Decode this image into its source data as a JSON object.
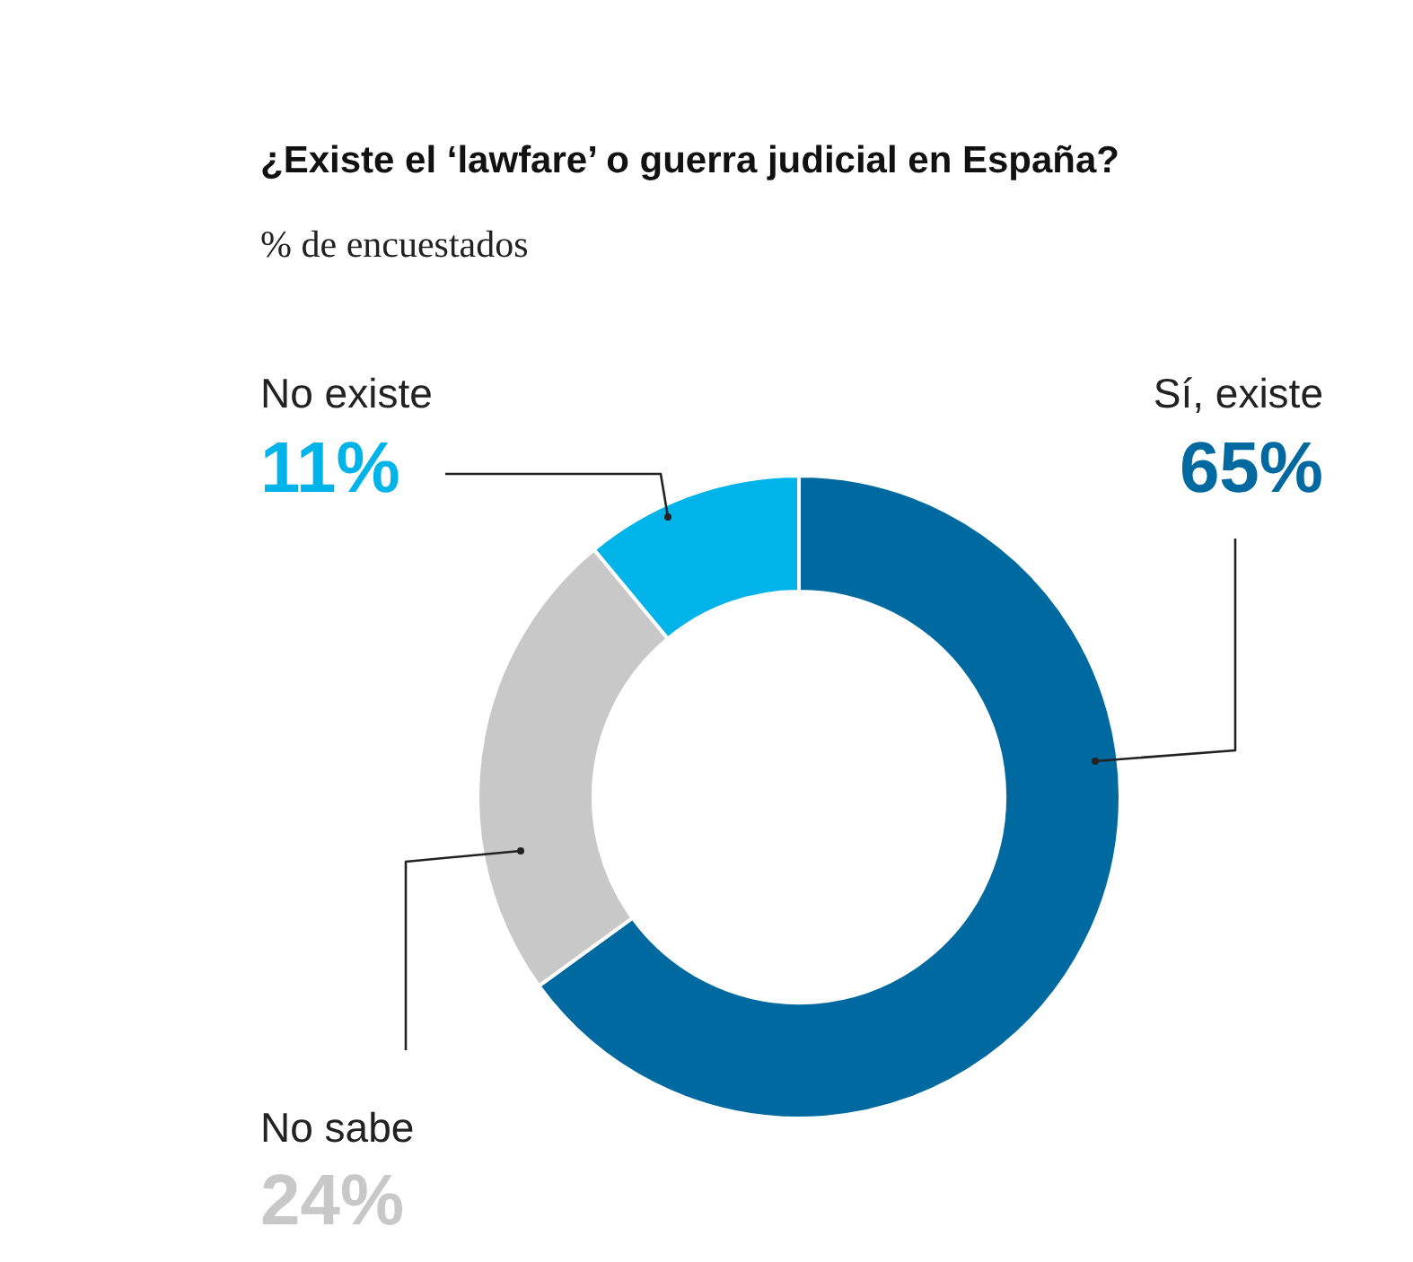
{
  "chart_data": {
    "type": "donut",
    "title": "¿Existe el ‘lawfare’ o guerra judicial en España?",
    "subtitle": "% de encuestados",
    "categories": [
      "Sí, existe",
      "No sabe",
      "No existe"
    ],
    "values": [
      65,
      24,
      11
    ],
    "colors": [
      "#006aa0",
      "#c8c8c8",
      "#00b4ea"
    ],
    "value_labels": [
      "65%",
      "24%",
      "11%"
    ],
    "legend": false
  }
}
